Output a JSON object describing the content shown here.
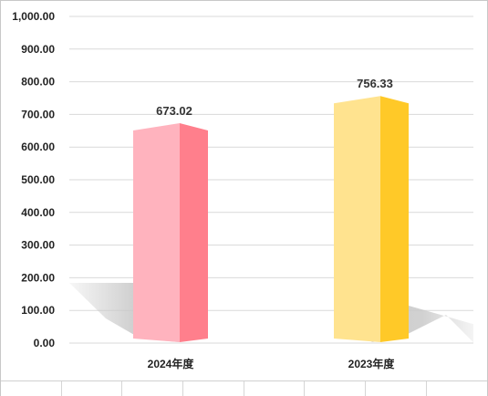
{
  "chart_data": {
    "type": "bar",
    "style": "3d-prism",
    "categories": [
      "2024年度",
      "2023年度"
    ],
    "values": [
      673.02,
      756.33
    ],
    "value_labels": [
      "673.02",
      "756.33"
    ],
    "y_ticks": [
      "0.00",
      "100.00",
      "200.00",
      "300.00",
      "400.00",
      "500.00",
      "600.00",
      "700.00",
      "800.00",
      "900.00",
      "1,000.00"
    ],
    "ylim": [
      0,
      1000
    ],
    "grid": true,
    "legend": "none",
    "colors": {
      "bar_1_front": "#ffb3be",
      "bar_1_side": "#ff7f8c",
      "bar_2_front": "#ffe38f",
      "bar_2_side": "#ffc928",
      "grid": "#d9d9d9",
      "shadow": "#c9c9c9"
    }
  }
}
